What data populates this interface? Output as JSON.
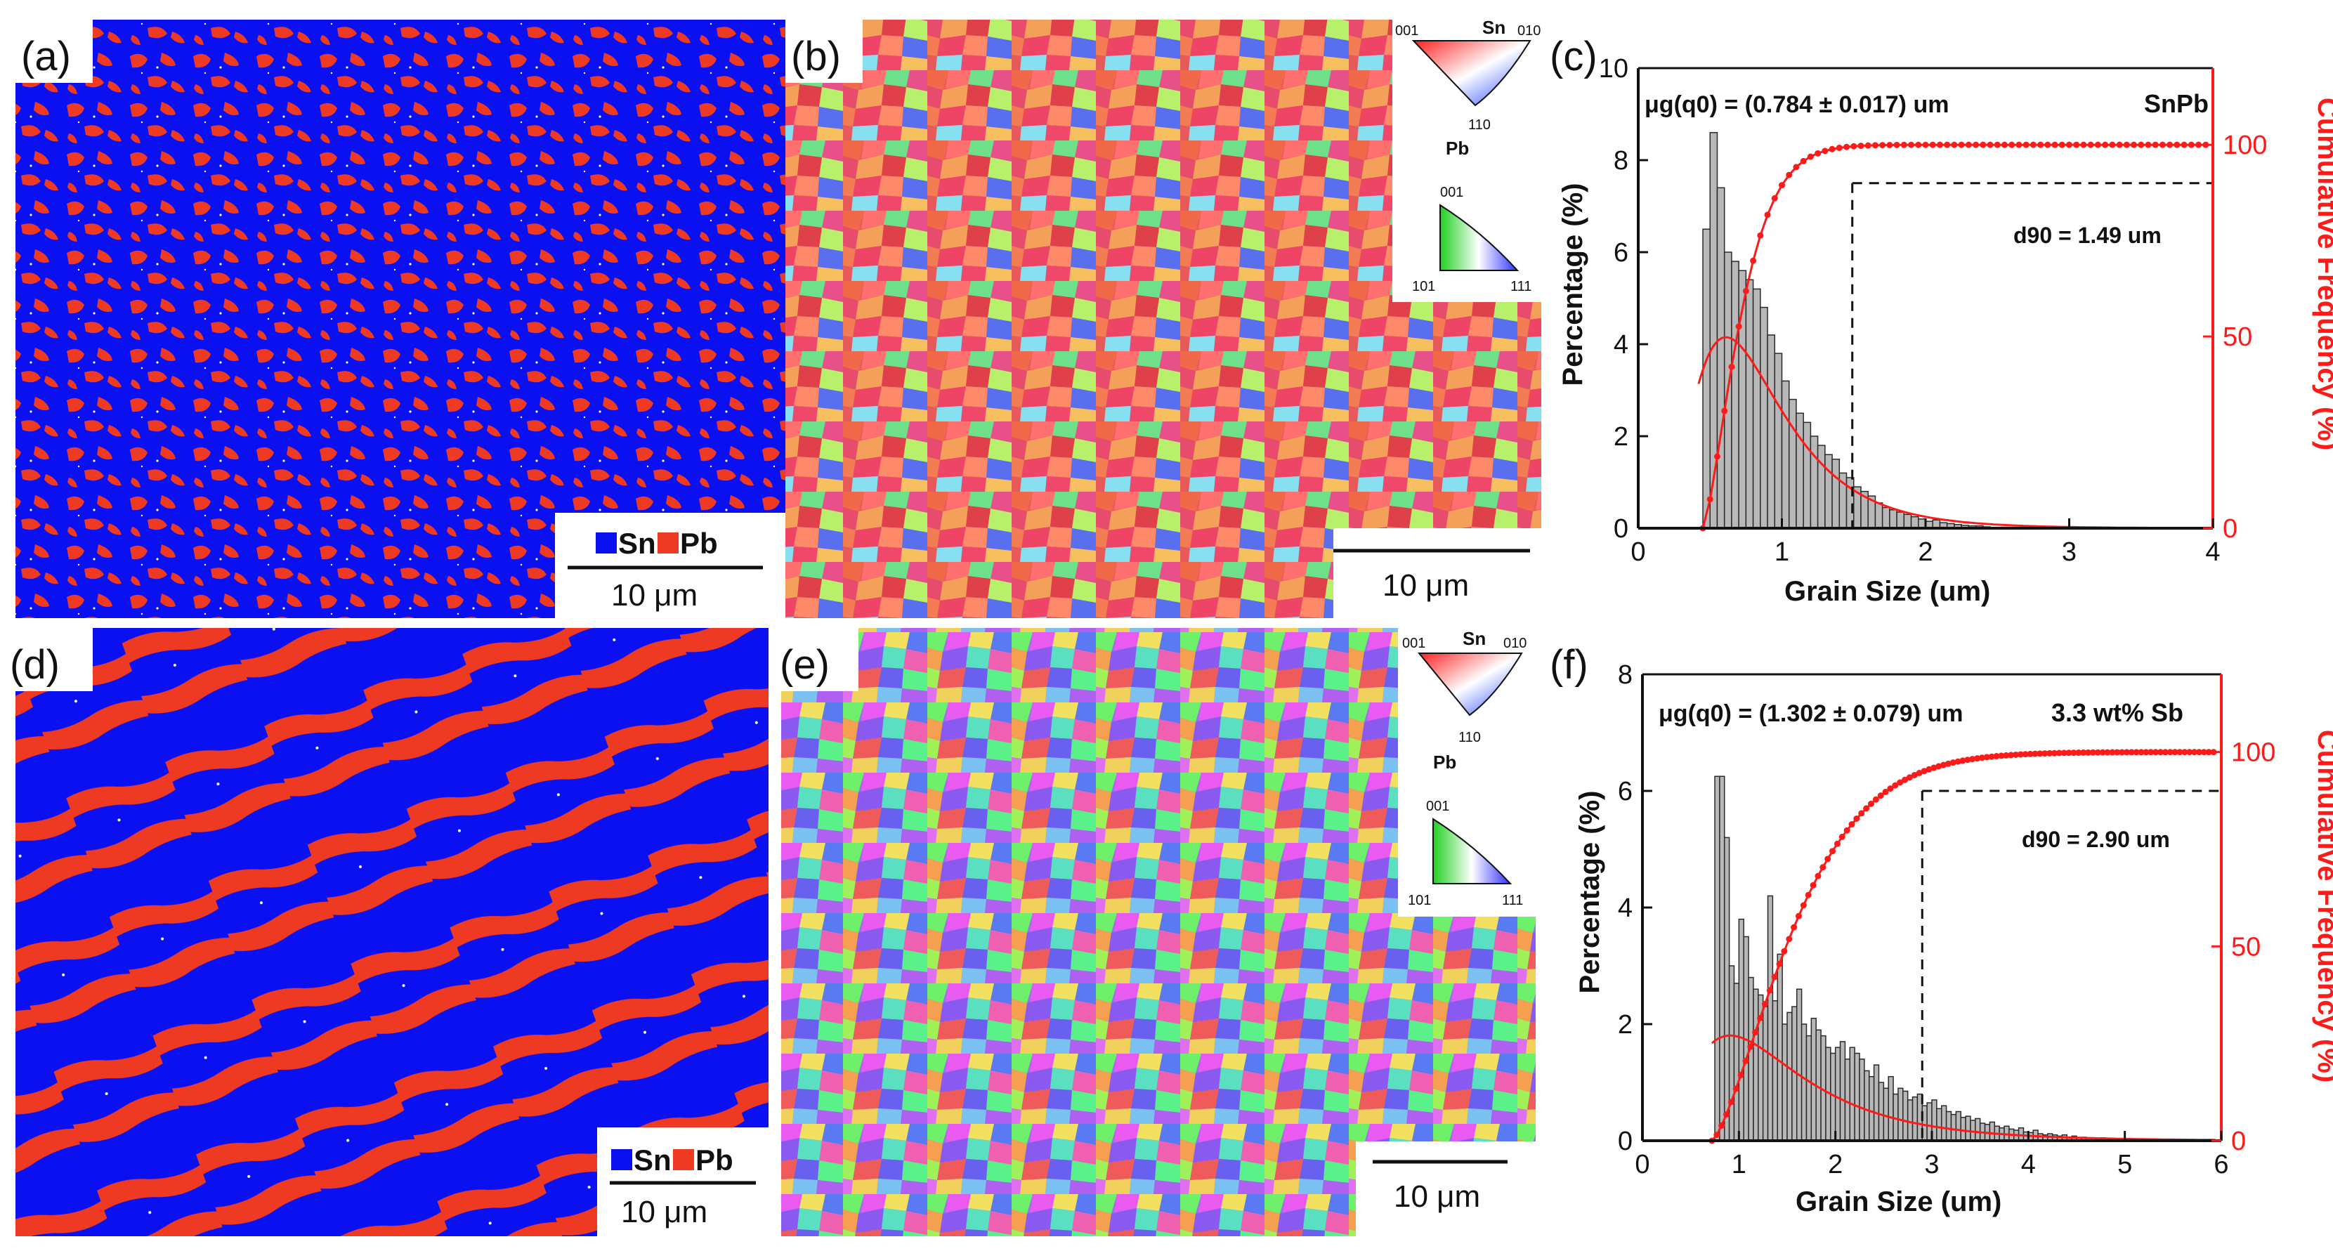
{
  "colors": {
    "sn_blue": "#0a10f0",
    "pb_red": "#ee3a22",
    "axis_red": "#ff1a1a",
    "bar_fill": "#b8b8b8",
    "bar_stroke": "#2a2a2a"
  },
  "panels": {
    "a": {
      "label": "(a)",
      "legend_sn": "Sn",
      "legend_pb": "Pb",
      "scale": "10 μm"
    },
    "b": {
      "label": "(b)",
      "scale": "10 μm",
      "ipf_sn": {
        "title": "Sn",
        "c1": "001",
        "c2": "010",
        "c3": "110"
      },
      "ipf_pb": {
        "title": "Pb",
        "c1": "001",
        "c2": "101",
        "c3": "111"
      }
    },
    "d": {
      "label": "(d)",
      "legend_sn": "Sn",
      "legend_pb": "Pb",
      "scale": "10 μm"
    },
    "e": {
      "label": "(e)",
      "scale": "10 μm",
      "ipf_sn": {
        "title": "Sn",
        "c1": "001",
        "c2": "010",
        "c3": "110"
      },
      "ipf_pb": {
        "title": "Pb",
        "c1": "001",
        "c2": "101",
        "c3": "111"
      }
    }
  },
  "chart_data": [
    {
      "panel": "(c)",
      "type": "bar",
      "title": "",
      "xlabel": "Grain Size (um)",
      "ylabel": "Percentage (%)",
      "y2label": "Cumulative Frequency (%)",
      "xlim": [
        0,
        4
      ],
      "ylim": [
        0,
        10
      ],
      "y2lim": [
        0,
        120
      ],
      "xticks": [
        0,
        1,
        2,
        3,
        4
      ],
      "yticks": [
        0,
        2,
        4,
        6,
        8,
        10
      ],
      "y2ticks": [
        0,
        50,
        100
      ],
      "annotation_mean": "μg(q0) = (0.784 ± 0.017) um",
      "annotation_sample": "SnPb",
      "annotation_d90": "d90 = 1.49 um",
      "d90": 1.49,
      "cum_at_d90": 90,
      "bin_width": 0.05,
      "bin_start": 0.45,
      "values": [
        6.5,
        8.6,
        7.4,
        6.0,
        5.8,
        5.6,
        5.4,
        5.2,
        4.8,
        4.2,
        3.8,
        3.2,
        2.8,
        2.5,
        2.3,
        2.0,
        1.8,
        1.6,
        1.5,
        1.2,
        1.1,
        0.9,
        0.8,
        0.7,
        0.55,
        0.45,
        0.4,
        0.35,
        0.3,
        0.25,
        0.2,
        0.15,
        0.18,
        0.12,
        0.1,
        0.08,
        0.06,
        0.05,
        0.05,
        0.03
      ],
      "fit": {
        "mu": 0.784,
        "sigma": 0.5,
        "scale": 3.6,
        "x_start": 0.42
      },
      "cumulative": {
        "x0": 0.45,
        "k": 5.2,
        "x_end": 3.95
      }
    },
    {
      "panel": "(f)",
      "type": "bar",
      "title": "",
      "xlabel": "Grain Size (um)",
      "ylabel": "Percentage (%)",
      "y2label": "Cumulative Frequency (%)",
      "xlim": [
        0,
        6
      ],
      "ylim": [
        0,
        8
      ],
      "y2lim": [
        0,
        120
      ],
      "xticks": [
        0,
        1,
        2,
        3,
        4,
        5,
        6
      ],
      "yticks": [
        0,
        2,
        4,
        6,
        8
      ],
      "y2ticks": [
        0,
        50,
        100
      ],
      "annotation_mean": "μg(q0) = (1.302 ± 0.079) um",
      "annotation_sample": "3.3 wt% Sb",
      "annotation_d90": "d90 = 2.90 um",
      "d90": 2.9,
      "cum_at_d90": 90,
      "bin_width": 0.05,
      "bin_start": 0.75,
      "values": [
        6.25,
        6.25,
        5.2,
        3.0,
        2.7,
        3.8,
        3.5,
        2.8,
        2.6,
        2.5,
        2.3,
        4.2,
        2.4,
        3.2,
        2.0,
        2.2,
        2.3,
        2.6,
        2.0,
        1.8,
        2.1,
        1.9,
        1.8,
        1.6,
        1.5,
        1.6,
        1.7,
        1.4,
        1.6,
        1.5,
        1.4,
        1.2,
        1.1,
        1.3,
        1.0,
        0.9,
        1.1,
        0.8,
        0.9,
        0.85,
        0.7,
        0.75,
        0.8,
        0.6,
        0.65,
        0.7,
        0.55,
        0.6,
        0.5,
        0.45,
        0.5,
        0.4,
        0.42,
        0.35,
        0.38,
        0.3,
        0.28,
        0.32,
        0.25,
        0.22,
        0.25,
        0.2,
        0.18,
        0.22,
        0.15,
        0.14,
        0.18,
        0.12,
        0.1,
        0.12,
        0.1,
        0.08,
        0.1,
        0.06,
        0.08,
        0.05,
        0.06,
        0.04,
        0.05,
        0.04,
        0.05
      ],
      "fit": {
        "mu": 1.302,
        "sigma": 0.6,
        "scale": 2.95,
        "x_start": 0.72
      },
      "cumulative": {
        "x0": 0.72,
        "k": 1.0,
        "x_end": 5.95
      }
    }
  ]
}
